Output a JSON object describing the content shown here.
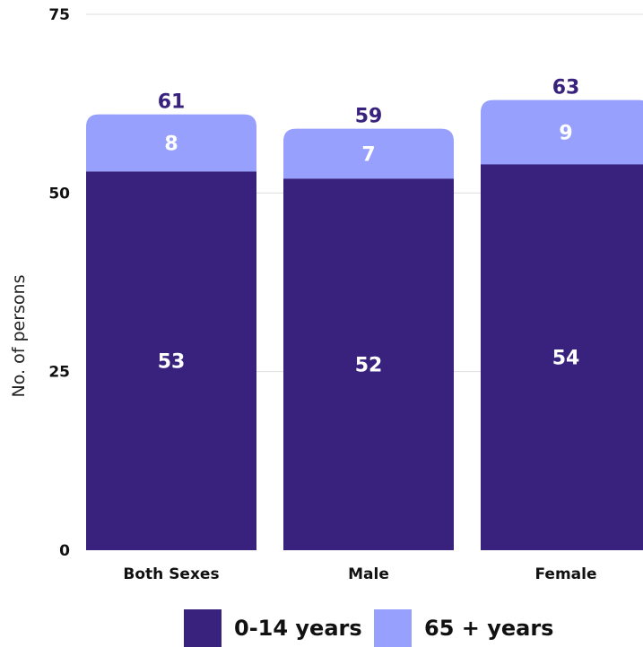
{
  "chart_data": {
    "type": "bar",
    "stacked": true,
    "categories": [
      "Both Sexes",
      "Male",
      "Female"
    ],
    "series": [
      {
        "name": "0-14 years",
        "values": [
          53,
          52,
          54
        ],
        "color": "#38227E"
      },
      {
        "name": "65 + years",
        "values": [
          8,
          7,
          9
        ],
        "color": "#97A0FC"
      }
    ],
    "totals": [
      61,
      59,
      63
    ],
    "total_label_color": "#38227E",
    "ylabel": "No. of persons",
    "ylim": [
      0,
      75
    ],
    "yticks": [
      0,
      25,
      50,
      75
    ],
    "grid": true,
    "legend": "bottom"
  }
}
